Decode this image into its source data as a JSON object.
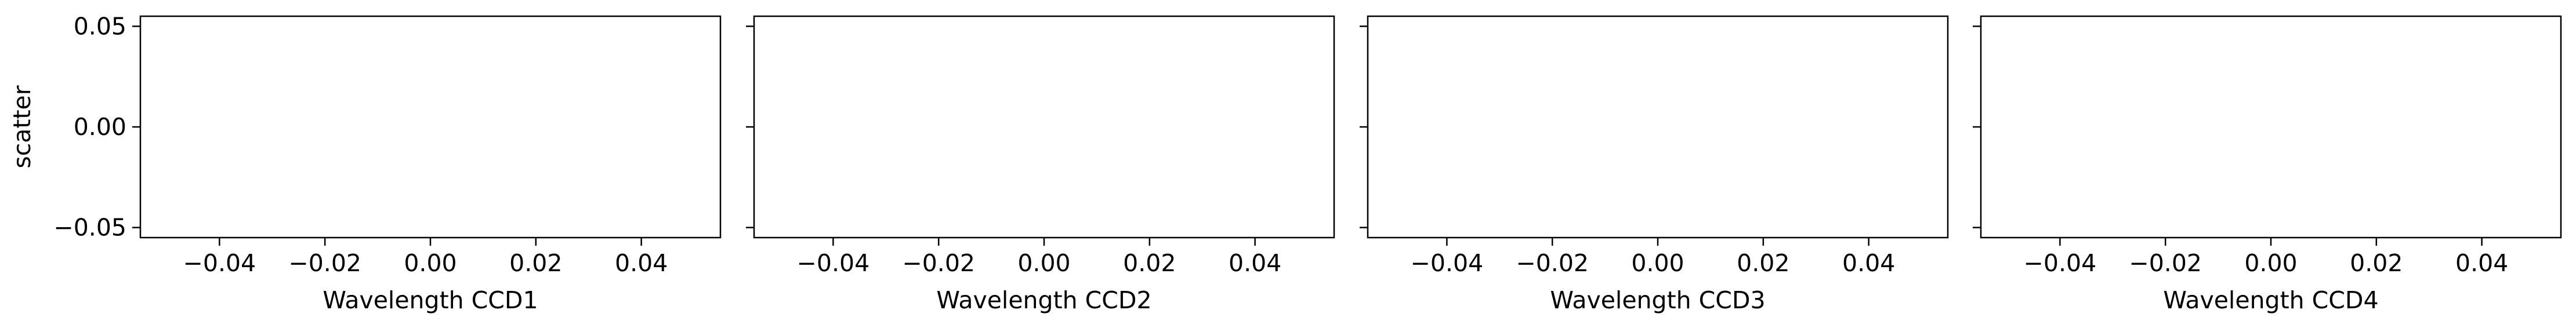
{
  "chart_data": [
    {
      "type": "scatter",
      "xlabel": "Wavelength CCD1",
      "ylabel": "scatter",
      "xlim": [
        -0.055,
        0.055
      ],
      "ylim": [
        -0.055,
        0.055
      ],
      "xticks": [
        -0.04,
        -0.02,
        0.0,
        0.02,
        0.04
      ],
      "xtick_labels": [
        "−0.04",
        "−0.02",
        "0.00",
        "0.02",
        "0.04"
      ],
      "yticks": [
        -0.05,
        0.0,
        0.05
      ],
      "ytick_labels": [
        "−0.05",
        "0.00",
        "0.05"
      ],
      "series": [],
      "grid": false
    },
    {
      "type": "scatter",
      "xlabel": "Wavelength CCD2",
      "ylabel": "",
      "xlim": [
        -0.055,
        0.055
      ],
      "ylim": [
        -0.055,
        0.055
      ],
      "xticks": [
        -0.04,
        -0.02,
        0.0,
        0.02,
        0.04
      ],
      "xtick_labels": [
        "−0.04",
        "−0.02",
        "0.00",
        "0.02",
        "0.04"
      ],
      "yticks": [
        -0.05,
        0.0,
        0.05
      ],
      "ytick_labels": [],
      "series": [],
      "grid": false
    },
    {
      "type": "scatter",
      "xlabel": "Wavelength CCD3",
      "ylabel": "",
      "xlim": [
        -0.055,
        0.055
      ],
      "ylim": [
        -0.055,
        0.055
      ],
      "xticks": [
        -0.04,
        -0.02,
        0.0,
        0.02,
        0.04
      ],
      "xtick_labels": [
        "−0.04",
        "−0.02",
        "0.00",
        "0.02",
        "0.04"
      ],
      "yticks": [
        -0.05,
        0.0,
        0.05
      ],
      "ytick_labels": [],
      "series": [],
      "grid": false
    },
    {
      "type": "scatter",
      "xlabel": "Wavelength CCD4",
      "ylabel": "",
      "xlim": [
        -0.055,
        0.055
      ],
      "ylim": [
        -0.055,
        0.055
      ],
      "xticks": [
        -0.04,
        -0.02,
        0.0,
        0.02,
        0.04
      ],
      "xtick_labels": [
        "−0.04",
        "−0.02",
        "0.00",
        "0.02",
        "0.04"
      ],
      "yticks": [
        -0.05,
        0.0,
        0.05
      ],
      "ytick_labels": [],
      "series": [],
      "grid": false
    }
  ]
}
